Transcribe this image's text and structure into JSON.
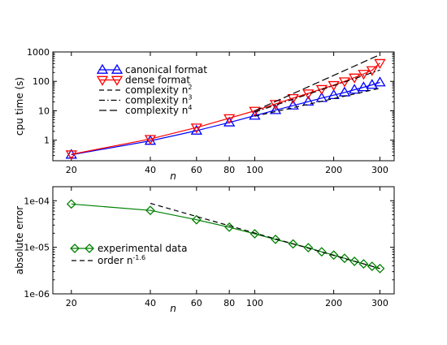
{
  "chart_data": [
    {
      "type": "line",
      "xscale": "log",
      "yscale": "log",
      "xlabel": "n",
      "ylabel": "cpu time (s)",
      "xlim": [
        17,
        340
      ],
      "ylim": [
        0.2,
        1000
      ],
      "xticks": [
        20,
        40,
        60,
        80,
        100,
        200,
        300
      ],
      "yticks": [
        1,
        10,
        100,
        1000
      ],
      "ytick_labels": [
        "1",
        "10",
        "100",
        "1000"
      ],
      "grid": false,
      "legend_position": "top-left",
      "series": [
        {
          "name": "canonical format",
          "color": "#0000ff",
          "marker": "triangle-up",
          "style": "solid",
          "x": [
            20,
            40,
            60,
            80,
            100,
            120,
            140,
            160,
            180,
            200,
            220,
            240,
            260,
            280,
            300
          ],
          "y": [
            0.32,
            0.95,
            2.1,
            4.0,
            6.8,
            10.5,
            15,
            20.5,
            27,
            34,
            42,
            52,
            63,
            76,
            92
          ]
        },
        {
          "name": "dense format",
          "color": "#ff0000",
          "marker": "triangle-down",
          "style": "solid",
          "x": [
            20,
            40,
            60,
            80,
            100,
            120,
            140,
            160,
            180,
            200,
            220,
            240,
            260,
            280,
            300
          ],
          "y": [
            0.33,
            1.1,
            2.7,
            5.6,
            10,
            17,
            27,
            39,
            55,
            75,
            100,
            135,
            180,
            240,
            420
          ]
        },
        {
          "name": "complexity n",
          "sup": "2",
          "color": "#000000",
          "marker": "none",
          "style": "dashed",
          "x": [
            100,
            300
          ],
          "y": [
            6.5,
            58.5
          ]
        },
        {
          "name": "complexity n",
          "sup": "3",
          "color": "#000000",
          "marker": "none",
          "style": "dashdot",
          "x": [
            100,
            300
          ],
          "y": [
            9,
            243
          ]
        },
        {
          "name": "complexity n",
          "sup": "4",
          "color": "#000000",
          "marker": "none",
          "style": "longdash",
          "x": [
            100,
            300
          ],
          "y": [
            10,
            810
          ]
        }
      ]
    },
    {
      "type": "line",
      "xscale": "log",
      "yscale": "log",
      "xlabel": "n",
      "ylabel": "absolute error",
      "xlim": [
        17,
        340
      ],
      "ylim": [
        1e-06,
        0.0002
      ],
      "xticks": [
        20,
        40,
        60,
        80,
        100,
        200,
        300
      ],
      "yticks": [
        1e-06,
        1e-05,
        0.0001
      ],
      "ytick_labels": [
        "1e-06",
        "1e-05",
        "1e-04"
      ],
      "grid": false,
      "legend_position": "bottom-left",
      "series": [
        {
          "name": "experimental data",
          "color": "#008000",
          "marker": "diamond",
          "style": "solid",
          "x": [
            20,
            40,
            60,
            80,
            100,
            120,
            140,
            160,
            180,
            200,
            220,
            240,
            260,
            280,
            300
          ],
          "y": [
            8.5e-05,
            6.2e-05,
            3.9e-05,
            2.7e-05,
            1.95e-05,
            1.48e-05,
            1.18e-05,
            9.8e-06,
            8e-06,
            6.8e-06,
            5.8e-06,
            5e-06,
            4.4e-06,
            3.9e-06,
            3.5e-06
          ]
        },
        {
          "name": "order n",
          "sup": "-1.6",
          "color": "#000000",
          "marker": "none",
          "style": "dashed",
          "x": [
            40,
            300
          ],
          "y": [
            8.8e-05,
            3.5e-06
          ]
        }
      ]
    }
  ]
}
